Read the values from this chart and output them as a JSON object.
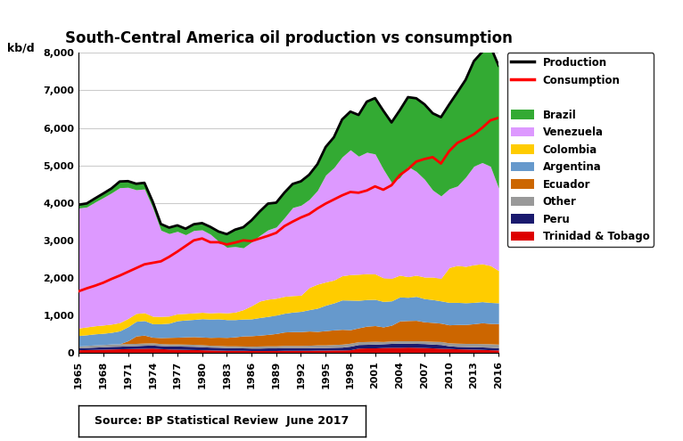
{
  "title": "South-Central America oil production vs consumption",
  "kbd_label": "kb/d",
  "source_text": "Source: BP Statistical Review  June 2017",
  "years": [
    1965,
    1966,
    1967,
    1968,
    1969,
    1970,
    1971,
    1972,
    1973,
    1974,
    1975,
    1976,
    1977,
    1978,
    1979,
    1980,
    1981,
    1982,
    1983,
    1984,
    1985,
    1986,
    1987,
    1988,
    1989,
    1990,
    1991,
    1992,
    1993,
    1994,
    1995,
    1996,
    1997,
    1998,
    1999,
    2000,
    2001,
    2002,
    2003,
    2004,
    2005,
    2006,
    2007,
    2008,
    2009,
    2010,
    2011,
    2012,
    2013,
    2014,
    2015,
    2016
  ],
  "trinidad": [
    80,
    85,
    90,
    95,
    100,
    105,
    110,
    115,
    120,
    125,
    110,
    100,
    95,
    90,
    85,
    80,
    75,
    70,
    65,
    65,
    65,
    60,
    60,
    60,
    60,
    65,
    65,
    65,
    65,
    70,
    70,
    75,
    75,
    80,
    125,
    130,
    130,
    140,
    145,
    145,
    150,
    145,
    140,
    130,
    120,
    115,
    105,
    100,
    95,
    90,
    80,
    75
  ],
  "peru": [
    50,
    55,
    60,
    65,
    70,
    70,
    75,
    75,
    80,
    80,
    80,
    80,
    85,
    85,
    85,
    80,
    75,
    75,
    70,
    70,
    65,
    65,
    65,
    70,
    70,
    70,
    70,
    70,
    70,
    70,
    70,
    70,
    75,
    95,
    95,
    95,
    100,
    100,
    105,
    110,
    105,
    105,
    105,
    100,
    100,
    70,
    65,
    65,
    65,
    65,
    65,
    55
  ],
  "other": [
    50,
    55,
    60,
    60,
    65,
    65,
    60,
    60,
    60,
    60,
    55,
    55,
    55,
    55,
    55,
    55,
    50,
    50,
    50,
    50,
    50,
    50,
    55,
    55,
    55,
    60,
    60,
    60,
    65,
    70,
    70,
    75,
    80,
    80,
    75,
    75,
    75,
    60,
    65,
    65,
    65,
    70,
    70,
    75,
    80,
    80,
    85,
    85,
    90,
    90,
    95,
    100
  ],
  "ecuador": [
    0,
    0,
    0,
    0,
    0,
    0,
    75,
    200,
    210,
    150,
    160,
    175,
    180,
    195,
    205,
    205,
    210,
    220,
    225,
    240,
    270,
    280,
    290,
    305,
    330,
    360,
    370,
    370,
    380,
    360,
    380,
    390,
    395,
    360,
    370,
    410,
    420,
    390,
    420,
    530,
    540,
    545,
    510,
    505,
    490,
    480,
    500,
    505,
    525,
    555,
    543,
    548
  ],
  "argentina": [
    280,
    285,
    295,
    300,
    310,
    345,
    375,
    390,
    390,
    360,
    370,
    380,
    440,
    450,
    460,
    490,
    490,
    490,
    475,
    460,
    450,
    450,
    470,
    480,
    490,
    500,
    520,
    540,
    570,
    620,
    680,
    720,
    785,
    790,
    735,
    710,
    700,
    680,
    650,
    640,
    620,
    640,
    620,
    610,
    595,
    600,
    590,
    580,
    570,
    565,
    560,
    555
  ],
  "colombia": [
    200,
    210,
    215,
    220,
    220,
    220,
    220,
    210,
    210,
    200,
    195,
    190,
    185,
    175,
    175,
    170,
    165,
    170,
    180,
    200,
    250,
    350,
    440,
    460,
    450,
    450,
    440,
    430,
    590,
    640,
    620,
    610,
    645,
    680,
    695,
    690,
    680,
    630,
    600,
    580,
    550,
    565,
    575,
    600,
    600,
    930,
    985,
    970,
    1005,
    1010,
    985,
    860
  ],
  "venezuela": [
    3200,
    3200,
    3300,
    3400,
    3500,
    3600,
    3500,
    3300,
    3300,
    2900,
    2300,
    2200,
    2200,
    2100,
    2200,
    2200,
    2100,
    1900,
    1750,
    1750,
    1650,
    1700,
    1750,
    1850,
    1900,
    2100,
    2350,
    2400,
    2350,
    2500,
    2850,
    3000,
    3170,
    3330,
    3150,
    3240,
    3200,
    2900,
    2560,
    2600,
    2940,
    2770,
    2610,
    2320,
    2200,
    2100,
    2120,
    2380,
    2630,
    2700,
    2650,
    2200
  ],
  "brazil": [
    90,
    95,
    100,
    110,
    120,
    165,
    165,
    160,
    165,
    160,
    165,
    160,
    160,
    160,
    165,
    180,
    195,
    260,
    350,
    450,
    550,
    580,
    640,
    700,
    650,
    670,
    630,
    640,
    660,
    700,
    750,
    810,
    1000,
    1020,
    1100,
    1350,
    1490,
    1560,
    1600,
    1800,
    1850,
    1950,
    2000,
    2050,
    2100,
    2250,
    2500,
    2600,
    2800,
    2950,
    3200,
    3270
  ],
  "consumption": [
    1640,
    1720,
    1790,
    1870,
    1970,
    2060,
    2160,
    2260,
    2360,
    2400,
    2440,
    2560,
    2700,
    2850,
    3000,
    3050,
    2950,
    2950,
    2890,
    2940,
    3000,
    2980,
    3050,
    3120,
    3200,
    3380,
    3500,
    3610,
    3700,
    3850,
    3980,
    4090,
    4200,
    4290,
    4270,
    4330,
    4440,
    4350,
    4470,
    4740,
    4900,
    5100,
    5170,
    5220,
    5050,
    5380,
    5600,
    5710,
    5830,
    6000,
    6200,
    6270
  ],
  "colors": {
    "trinidad": "#dd0000",
    "peru": "#1a1a6e",
    "other": "#999999",
    "ecuador": "#cc6600",
    "argentina": "#6699cc",
    "colombia": "#ffcc00",
    "venezuela": "#dd99ff",
    "brazil": "#33aa33"
  },
  "ylim": [
    0,
    8000
  ],
  "xlim_start": 1965,
  "xlim_end": 2016
}
